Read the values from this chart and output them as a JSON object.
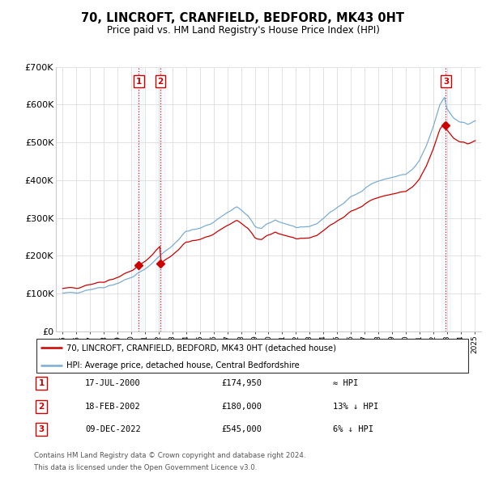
{
  "title": "70, LINCROFT, CRANFIELD, BEDFORD, MK43 0HT",
  "subtitle": "Price paid vs. HM Land Registry's House Price Index (HPI)",
  "legend_line1": "70, LINCROFT, CRANFIELD, BEDFORD, MK43 0HT (detached house)",
  "legend_line2": "HPI: Average price, detached house, Central Bedfordshire",
  "footnote1": "Contains HM Land Registry data © Crown copyright and database right 2024.",
  "footnote2": "This data is licensed under the Open Government Licence v3.0.",
  "ylim": [
    0,
    700000
  ],
  "yticks": [
    0,
    100000,
    200000,
    300000,
    400000,
    500000,
    600000,
    700000
  ],
  "ytick_labels": [
    "£0",
    "£100K",
    "£200K",
    "£300K",
    "£400K",
    "£500K",
    "£600K",
    "£700K"
  ],
  "hpi_color": "#7aadd4",
  "price_color": "#cc0000",
  "vline_color": "#cc0000",
  "shade_color": "#d0e4f7",
  "transactions": [
    {
      "id": 1,
      "date": "17-JUL-2000",
      "price": 174950,
      "rel": "≈ HPI",
      "year": 2000.54
    },
    {
      "id": 2,
      "date": "18-FEB-2002",
      "price": 180000,
      "rel": "13% ↓ HPI",
      "year": 2002.13
    },
    {
      "id": 3,
      "date": "09-DEC-2022",
      "price": 545000,
      "rel": "6% ↓ HPI",
      "year": 2022.93
    }
  ],
  "xlim_left": 1994.5,
  "xlim_right": 2025.5,
  "xticks": [
    1995,
    1996,
    1997,
    1998,
    1999,
    2000,
    2001,
    2002,
    2003,
    2004,
    2005,
    2006,
    2007,
    2008,
    2009,
    2010,
    2011,
    2012,
    2013,
    2014,
    2015,
    2016,
    2017,
    2018,
    2019,
    2020,
    2021,
    2022,
    2023,
    2024,
    2025
  ]
}
